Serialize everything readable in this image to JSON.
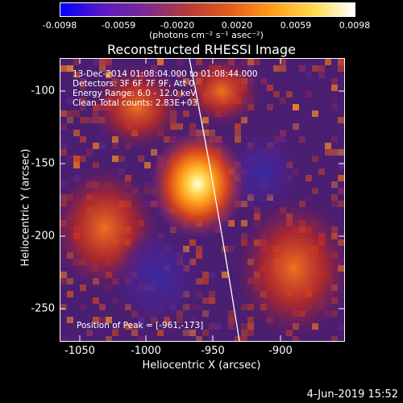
{
  "colorbar": {
    "ticks": [
      "-0.0098",
      "-0.0059",
      "-0.0020",
      "0.0020",
      "0.0059",
      "0.0098"
    ],
    "unit": "(photons cm⁻² s⁻¹ asec⁻²)",
    "stops": [
      "#0000ff",
      "#5a18c8",
      "#7a2a90",
      "#b43a3a",
      "#e25a1a",
      "#ff9a1a",
      "#ffd84a",
      "#ffffff"
    ]
  },
  "title": "Reconstructed RHESSI Image",
  "info": {
    "line1": "13-Dec-2014 01:08:04.000 to 01:08:44.000",
    "line2": "Detectors: 3F 6F 7F 9F, Att 0",
    "line3": "Energy Range: 6.0 - 12.0 keV",
    "line4": "Clean    Total counts: 2.83E+03"
  },
  "peak": "Position of Peak = [-961,-173]",
  "axes": {
    "xlabel": "Heliocentric X (arcsec)",
    "ylabel": "Heliocentric Y (arcsec)",
    "xticks": [
      "-1050",
      "-1000",
      "-950",
      "-900"
    ],
    "yticks": [
      "-100",
      "-150",
      "-200",
      "-250"
    ]
  },
  "date_stamp": "4-Jun-2019 15:52"
}
